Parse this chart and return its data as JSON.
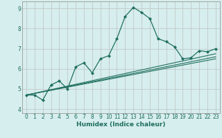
{
  "title": "",
  "xlabel": "Humidex (Indice chaleur)",
  "bg_color": "#d6eeed",
  "grid_color": "#c0c8c8",
  "line_color": "#1e6e5e",
  "spine_color": "#999999",
  "xlim": [
    -0.5,
    23.5
  ],
  "ylim": [
    3.8,
    9.35
  ],
  "yticks": [
    4,
    5,
    6,
    7,
    8,
    9
  ],
  "xticks": [
    0,
    1,
    2,
    3,
    4,
    5,
    6,
    7,
    8,
    9,
    10,
    11,
    12,
    13,
    14,
    15,
    16,
    17,
    18,
    19,
    20,
    21,
    22,
    23
  ],
  "series_main": {
    "x": [
      0,
      1,
      2,
      3,
      4,
      5,
      6,
      7,
      8,
      9,
      10,
      11,
      12,
      13,
      14,
      15,
      16,
      17,
      18,
      19,
      20,
      21,
      22,
      23
    ],
    "y": [
      4.7,
      4.7,
      4.45,
      5.2,
      5.4,
      5.0,
      6.1,
      6.3,
      5.8,
      6.5,
      6.65,
      7.5,
      8.6,
      9.05,
      8.8,
      8.5,
      7.5,
      7.35,
      7.1,
      6.5,
      6.55,
      6.9,
      6.85,
      7.0
    ]
  },
  "series_lines": [
    {
      "x": [
        0,
        23
      ],
      "y": [
        4.7,
        6.5
      ]
    },
    {
      "x": [
        0,
        23
      ],
      "y": [
        4.7,
        6.75
      ]
    },
    {
      "x": [
        0,
        23
      ],
      "y": [
        4.7,
        6.6
      ]
    }
  ]
}
